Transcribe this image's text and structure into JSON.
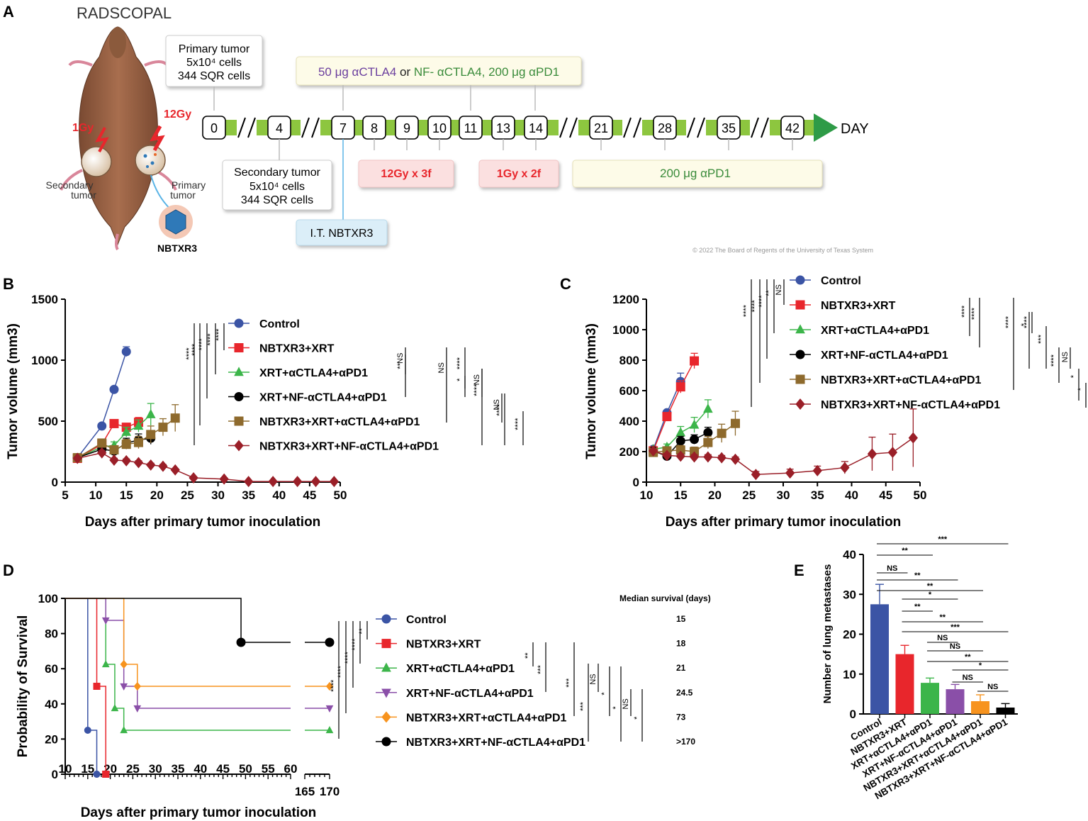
{
  "colors": {
    "control": "#3b54a5",
    "nbtxr3_xrt": "#e8262c",
    "xrt_ctla4_pd1": "#3cb54a",
    "xrt_nf_ctla4_pd1": "#000000",
    "nbtxr3_xrt_ctla4_pd1": "#8e6a2d",
    "nbtxr3_xrt_nf_ctla4_pd1": "#9a1f28",
    "survival_purple": "#8a4fa8",
    "survival_orange": "#f7931e",
    "timeline_green": "#8dc63f",
    "timeline_dark": "#2e9b47"
  },
  "panel_a": {
    "letter": "A",
    "title": "RADSCOPAL",
    "dose_left": "1Gy",
    "dose_right": "12Gy",
    "secondary_label": [
      "Secondary",
      "tumor"
    ],
    "primary_label": [
      "Primary",
      "tumor"
    ],
    "nbtxr3_label": "NBTXR3",
    "callout_primary": [
      "Primary tumor",
      "5x10⁴ cells",
      "344 SQR cells"
    ],
    "callout_secondary": [
      "Secondary tumor",
      "5x10⁴ cells",
      "344 SQR cells"
    ],
    "callout_drug": {
      "part1": "50 μg αCTLA4",
      "part2": " or ",
      "part3": "NF- αCTLA4, 200 μg αPD1"
    },
    "callout_it": "I.T. NBTXR3",
    "callout_12gy": "12Gy x 3f",
    "callout_1gy": "1Gy x 2f",
    "callout_pd1": "200 μg αPD1",
    "days": [
      "0",
      "4",
      "7",
      "8",
      "9",
      "10",
      "11",
      "13",
      "14",
      "21",
      "28",
      "35",
      "42"
    ],
    "day_label": "DAY",
    "copyright": "© 2022 The Board of Regents of the University of Texas System"
  },
  "panel_b": {
    "letter": "B",
    "chart_data": {
      "type": "line",
      "ylabel": "Tumor volume (mm3)",
      "xlabel": "Days after primary tumor inoculation",
      "xlim": [
        5,
        50
      ],
      "ylim": [
        0,
        1500
      ],
      "xticks": [
        5,
        10,
        15,
        20,
        25,
        30,
        35,
        40,
        45,
        50
      ],
      "yticks": [
        0,
        500,
        1000,
        1500
      ],
      "series": [
        {
          "name": "Control",
          "marker": "circle",
          "x": [
            7,
            11,
            13,
            15
          ],
          "y": [
            200,
            460,
            760,
            1070
          ],
          "err": [
            10,
            15,
            15,
            40
          ]
        },
        {
          "name": "NBTXR3+XRT",
          "marker": "square",
          "x": [
            7,
            11,
            13,
            15,
            17
          ],
          "y": [
            195,
            310,
            480,
            450,
            490
          ],
          "err": [
            10,
            20,
            20,
            25,
            40
          ]
        },
        {
          "name": "XRT+αCTLA4+αPD1",
          "marker": "triangle",
          "x": [
            7,
            11,
            13,
            15,
            17,
            19
          ],
          "y": [
            195,
            290,
            300,
            410,
            460,
            555
          ],
          "err": [
            10,
            20,
            30,
            40,
            50,
            90
          ]
        },
        {
          "name": "XRT+NF-αCTLA4+αPD1",
          "marker": "circle",
          "x": [
            7,
            11,
            13,
            15,
            17,
            19
          ],
          "y": [
            200,
            270,
            255,
            320,
            345,
            360
          ],
          "err": [
            10,
            20,
            20,
            40,
            50,
            50
          ]
        },
        {
          "name": "NBTXR3+XRT+αCTLA4+αPD1",
          "marker": "square",
          "x": [
            7,
            11,
            13,
            15,
            17,
            19,
            21,
            23
          ],
          "y": [
            200,
            320,
            265,
            310,
            325,
            390,
            450,
            525
          ],
          "err": [
            10,
            30,
            30,
            40,
            50,
            70,
            70,
            110
          ]
        },
        {
          "name": "NBTXR3+XRT+NF-αCTLA4+αPD1",
          "marker": "diamond",
          "x": [
            7,
            11,
            13,
            15,
            17,
            19,
            21,
            23,
            26,
            31,
            35,
            39,
            43,
            46,
            49
          ],
          "y": [
            195,
            240,
            180,
            175,
            160,
            140,
            130,
            100,
            35,
            25,
            5,
            5,
            5,
            5,
            5
          ],
          "err": [
            10,
            20,
            15,
            15,
            15,
            15,
            15,
            10,
            10,
            10,
            3,
            3,
            3,
            3,
            3
          ]
        }
      ],
      "significance": [
        "****",
        "****",
        "****",
        "****",
        "****",
        "NS",
        "**",
        "NS",
        "****",
        "*",
        "NS",
        "****",
        "NS",
        "****",
        "****"
      ]
    }
  },
  "panel_c": {
    "letter": "C",
    "chart_data": {
      "type": "line",
      "ylabel": "Tumor volume (mm3)",
      "xlabel": "Days after primary tumor inoculation",
      "xlim": [
        10,
        50
      ],
      "ylim": [
        0,
        1200
      ],
      "xticks": [
        10,
        15,
        20,
        25,
        30,
        35,
        40,
        45,
        50
      ],
      "yticks": [
        0,
        200,
        400,
        600,
        800,
        1000,
        1200
      ],
      "series": [
        {
          "name": "Control",
          "marker": "circle",
          "x": [
            11,
            13,
            15
          ],
          "y": [
            215,
            455,
            660
          ],
          "err": [
            10,
            15,
            55
          ]
        },
        {
          "name": "NBTXR3+XRT",
          "marker": "square",
          "x": [
            11,
            13,
            15,
            17
          ],
          "y": [
            205,
            430,
            625,
            795
          ],
          "err": [
            10,
            20,
            40,
            50
          ]
        },
        {
          "name": "XRT+αCTLA4+αPD1",
          "marker": "triangle",
          "x": [
            11,
            13,
            15,
            17,
            19
          ],
          "y": [
            215,
            230,
            325,
            375,
            480
          ],
          "err": [
            10,
            20,
            40,
            50,
            60
          ]
        },
        {
          "name": "XRT+NF-αCTLA4+αPD1",
          "marker": "circle",
          "x": [
            11,
            13,
            15,
            17,
            19
          ],
          "y": [
            205,
            170,
            270,
            280,
            325
          ],
          "err": [
            10,
            15,
            30,
            30,
            35
          ]
        },
        {
          "name": "NBTXR3+XRT+αCTLA4+αPD1",
          "marker": "square",
          "x": [
            11,
            13,
            15,
            17,
            19,
            21,
            23
          ],
          "y": [
            195,
            205,
            210,
            200,
            260,
            320,
            385
          ],
          "err": [
            10,
            15,
            30,
            30,
            40,
            60,
            80
          ]
        },
        {
          "name": "NBTXR3+XRT+NF-αCTLA4+αPD1",
          "marker": "diamond",
          "x": [
            11,
            13,
            15,
            17,
            19,
            21,
            23,
            26,
            31,
            35,
            39,
            43,
            46,
            49
          ],
          "y": [
            205,
            175,
            170,
            165,
            165,
            160,
            150,
            50,
            60,
            75,
            95,
            185,
            195,
            290
          ],
          "err": [
            10,
            15,
            15,
            15,
            15,
            15,
            15,
            20,
            25,
            30,
            40,
            110,
            120,
            190
          ]
        }
      ],
      "significance": [
        "****",
        "****",
        "****",
        "**",
        "NS",
        "****",
        "****",
        "****",
        "*",
        "****",
        "***",
        "****",
        "NS",
        "*",
        "*"
      ]
    }
  },
  "panel_d": {
    "letter": "D",
    "chart_data": {
      "type": "line",
      "ylabel": "Probability of Survival",
      "xlabel": "Days after primary tumor inoculation",
      "ylim": [
        0,
        100
      ],
      "xticks": [
        "10",
        "15",
        "20",
        "25",
        "30",
        "35",
        "40",
        "45",
        "50",
        "55",
        "60",
        "165",
        "170"
      ],
      "yticks": [
        0,
        20,
        40,
        60,
        80,
        100
      ],
      "median_header": "Median survival (days)",
      "series": [
        {
          "name": "Control",
          "marker": "circle",
          "median": "15",
          "steps": [
            [
              10,
              100
            ],
            [
              15,
              25
            ],
            [
              17,
              0
            ]
          ],
          "end_x": 17
        },
        {
          "name": "NBTXR3+XRT",
          "marker": "square",
          "median": "18",
          "steps": [
            [
              10,
              100
            ],
            [
              17,
              50
            ],
            [
              19,
              0
            ]
          ],
          "end_x": 19
        },
        {
          "name": "XRT+αCTLA4+αPD1",
          "marker": "triangle",
          "median": "21",
          "steps": [
            [
              10,
              100
            ],
            [
              19,
              62.5
            ],
            [
              21,
              37.5
            ],
            [
              23,
              25
            ]
          ],
          "end_x": 170
        },
        {
          "name": "XRT+NF-αCTLA4+αPD1",
          "marker": "triangle-down",
          "median": "24.5",
          "steps": [
            [
              10,
              100
            ],
            [
              19,
              87.5
            ],
            [
              23,
              50
            ],
            [
              26,
              37.5
            ]
          ],
          "end_x": 170
        },
        {
          "name": "NBTXR3+XRT+αCTLA4+αPD1",
          "marker": "diamond",
          "median": "73",
          "steps": [
            [
              10,
              100
            ],
            [
              23,
              62.5
            ],
            [
              26,
              50
            ]
          ],
          "end_x": 170
        },
        {
          "name": "NBTXR3+XRT+NF-αCTLA4+αPD1",
          "marker": "circle",
          "median": ">170",
          "steps": [
            [
              10,
              100
            ],
            [
              49,
              75
            ]
          ],
          "end_x": 170
        }
      ],
      "significance": [
        "****",
        "****",
        "****",
        "****",
        "**",
        "**",
        "***",
        "***",
        "***",
        "NS",
        "*",
        "*",
        "NS",
        "*"
      ]
    }
  },
  "panel_e": {
    "letter": "E",
    "chart_data": {
      "type": "bar",
      "ylabel": "Number of lung metastases",
      "ylim": [
        0,
        40
      ],
      "yticks": [
        0,
        10,
        20,
        30,
        40
      ],
      "categories": [
        "Control",
        "NBTXR3+XRT",
        "XRT+αCTLA4+αPD1",
        "XRT+NF-αCTLA4+αPD1",
        "NBTXR3+XRT+αCTLA4+αPD1",
        "NBTXR3+XRT+NF-αCTLA4+αPD1"
      ],
      "values": [
        27.5,
        15,
        7.8,
        6.2,
        3.2,
        1.6
      ],
      "errors": [
        5,
        2.2,
        1.2,
        1.2,
        1.6,
        1
      ],
      "comparisons": [
        {
          "a": 0,
          "b": 5,
          "label": "***"
        },
        {
          "a": 0,
          "b": 2,
          "label": "**"
        },
        {
          "a": 0,
          "b": 1,
          "label": "NS"
        },
        {
          "a": 0,
          "b": 3,
          "label": "**"
        },
        {
          "a": 0,
          "b": 4,
          "label": "**"
        },
        {
          "a": 1,
          "b": 3,
          "label": "*"
        },
        {
          "a": 1,
          "b": 2,
          "label": "**"
        },
        {
          "a": 1,
          "b": 4,
          "label": "**"
        },
        {
          "a": 1,
          "b": 5,
          "label": "***"
        },
        {
          "a": 2,
          "b": 3,
          "label": "NS"
        },
        {
          "a": 2,
          "b": 4,
          "label": "NS"
        },
        {
          "a": 2,
          "b": 5,
          "label": "**"
        },
        {
          "a": 3,
          "b": 5,
          "label": "*"
        },
        {
          "a": 3,
          "b": 4,
          "label": "NS"
        },
        {
          "a": 4,
          "b": 5,
          "label": "NS"
        }
      ]
    }
  }
}
